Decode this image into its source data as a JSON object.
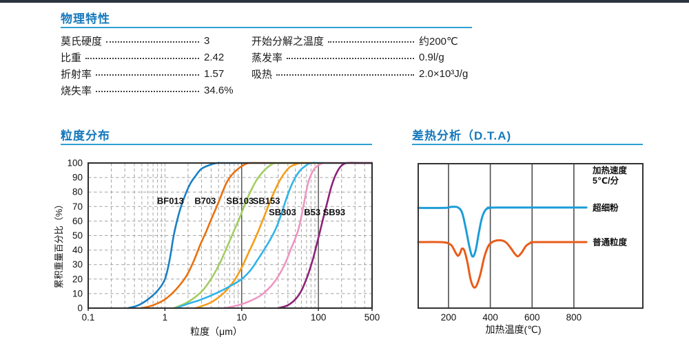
{
  "theme": {
    "title_color": "#1578bc",
    "rule_color": "#2e9fd4",
    "topbar_color": "#2c3340",
    "text_color": "#1c1c1e"
  },
  "physical": {
    "title": "物理特性",
    "left": [
      {
        "label": "莫氏硬度",
        "value": "3"
      },
      {
        "label": "比重",
        "value": "2.42"
      },
      {
        "label": "折射率",
        "value": "1.57"
      },
      {
        "label": "烧失率",
        "value": "34.6%"
      }
    ],
    "right": [
      {
        "label": "开始分解之温度",
        "value": "约200℃"
      },
      {
        "label": "蒸发率",
        "value": "0.9l/g"
      },
      {
        "label": "吸热",
        "value": "2.0×10³J/g"
      }
    ]
  },
  "particle": {
    "title": "粒度分布"
  },
  "dta": {
    "title": "差热分析（D.T.A)"
  },
  "chart_data": [
    {
      "type": "line",
      "title": "粒度分布",
      "xlabel": "粒度（μm）",
      "ylabel": "累积重量百分比（%）",
      "x_scale": "log",
      "xlim": [
        0.1,
        500
      ],
      "ylim": [
        0,
        100
      ],
      "x_ticks": [
        "0.1",
        "1",
        "10",
        "100",
        "500"
      ],
      "x_tick_values": [
        0.1,
        1,
        10,
        100,
        500
      ],
      "y_ticks": [
        0,
        10,
        20,
        30,
        40,
        50,
        60,
        70,
        80,
        90,
        100
      ],
      "solid_vlines": [
        10,
        100
      ],
      "grid": "dashed-minor-log",
      "series": [
        {
          "name": "BF013",
          "color": "#1a7fc4",
          "label_at": [
            1.18,
            74
          ],
          "points": [
            [
              0.33,
              0
            ],
            [
              0.45,
              2
            ],
            [
              0.6,
              6
            ],
            [
              0.8,
              12
            ],
            [
              1.0,
              20
            ],
            [
              1.15,
              33
            ],
            [
              1.3,
              50
            ],
            [
              1.5,
              64
            ],
            [
              1.75,
              75
            ],
            [
              2.1,
              85
            ],
            [
              2.5,
              91
            ],
            [
              3.0,
              96
            ],
            [
              4.0,
              99
            ],
            [
              5.0,
              100
            ],
            [
              8,
              100
            ],
            [
              500,
              100
            ]
          ]
        },
        {
          "name": "B703",
          "color": "#e8700f",
          "label_at": [
            3.35,
            74
          ],
          "points": [
            [
              0.5,
              0
            ],
            [
              0.7,
              2
            ],
            [
              1.0,
              6
            ],
            [
              1.4,
              13
            ],
            [
              1.9,
              22
            ],
            [
              2.4,
              33
            ],
            [
              2.9,
              44
            ],
            [
              3.4,
              52
            ],
            [
              4.0,
              61
            ],
            [
              5.0,
              73
            ],
            [
              6.3,
              86
            ],
            [
              7.5,
              92
            ],
            [
              9.0,
              96
            ],
            [
              11,
              99
            ],
            [
              13,
              100
            ],
            [
              20,
              100
            ],
            [
              500,
              100
            ]
          ]
        },
        {
          "name": "SB103",
          "color": "#a3cd62",
          "label_at": [
            9.5,
            74
          ],
          "points": [
            [
              1.3,
              0
            ],
            [
              1.8,
              3
            ],
            [
              2.4,
              7
            ],
            [
              3.2,
              13
            ],
            [
              4.2,
              22
            ],
            [
              5.2,
              31
            ],
            [
              6.2,
              40
            ],
            [
              7.2,
              48
            ],
            [
              8.2,
              55
            ],
            [
              9.7,
              64
            ],
            [
              11.5,
              74
            ],
            [
              13.5,
              82
            ],
            [
              16,
              89
            ],
            [
              19,
              94
            ],
            [
              23,
              98
            ],
            [
              28,
              100
            ],
            [
              40,
              100
            ],
            [
              500,
              100
            ]
          ]
        },
        {
          "name": "SB153",
          "color": "#f59d18",
          "label_at": [
            21,
            74
          ],
          "points": [
            [
              2.5,
              0
            ],
            [
              4,
              4
            ],
            [
              6,
              11
            ],
            [
              8,
              19
            ],
            [
              10,
              28
            ],
            [
              12.5,
              39
            ],
            [
              15,
              48
            ],
            [
              18,
              58
            ],
            [
              21,
              67
            ],
            [
              25,
              77
            ],
            [
              30,
              86
            ],
            [
              35,
              92
            ],
            [
              42,
              97
            ],
            [
              50,
              99
            ],
            [
              60,
              100
            ],
            [
              90,
              100
            ],
            [
              500,
              100
            ]
          ]
        },
        {
          "name": "SB303",
          "color": "#2fb4e9",
          "label_at": [
            34,
            66
          ],
          "points": [
            [
              1.4,
              0
            ],
            [
              2,
              3
            ],
            [
              3,
              6
            ],
            [
              5,
              11
            ],
            [
              7,
              15
            ],
            [
              10,
              20
            ],
            [
              13,
              26
            ],
            [
              16,
              33
            ],
            [
              20,
              41
            ],
            [
              24,
              48
            ],
            [
              28,
              55
            ],
            [
              33,
              65
            ],
            [
              38,
              75
            ],
            [
              44,
              84
            ],
            [
              50,
              90
            ],
            [
              58,
              95
            ],
            [
              68,
              98
            ],
            [
              80,
              100
            ],
            [
              120,
              100
            ],
            [
              500,
              100
            ]
          ]
        },
        {
          "name": "B53",
          "color": "#ef95c3",
          "label_at": [
            83,
            66
          ],
          "points": [
            [
              6,
              0
            ],
            [
              9,
              2
            ],
            [
              13,
              5
            ],
            [
              18,
              9
            ],
            [
              24,
              15
            ],
            [
              30,
              22
            ],
            [
              37,
              31
            ],
            [
              44,
              41
            ],
            [
              50,
              48
            ],
            [
              56,
              56
            ],
            [
              62,
              67
            ],
            [
              68,
              78
            ],
            [
              74,
              87
            ],
            [
              82,
              93
            ],
            [
              92,
              97
            ],
            [
              105,
              99
            ],
            [
              120,
              100
            ],
            [
              180,
              100
            ],
            [
              500,
              100
            ]
          ]
        },
        {
          "name": "SB93",
          "color": "#8e2077",
          "label_at": [
            160,
            66
          ],
          "points": [
            [
              30,
              0
            ],
            [
              40,
              2
            ],
            [
              50,
              6
            ],
            [
              60,
              12
            ],
            [
              72,
              22
            ],
            [
              85,
              34
            ],
            [
              95,
              44
            ],
            [
              105,
              53
            ],
            [
              118,
              64
            ],
            [
              132,
              74
            ],
            [
              148,
              84
            ],
            [
              165,
              91
            ],
            [
              185,
              96
            ],
            [
              210,
              99
            ],
            [
              240,
              100
            ],
            [
              350,
              100
            ],
            [
              500,
              100
            ]
          ]
        }
      ]
    },
    {
      "type": "line",
      "title": "差热分析（D.T.A)",
      "xlabel": "加热温度(℃)",
      "ylabel": "",
      "xlim": [
        55,
        1130
      ],
      "x_ticks": [
        "200",
        "400",
        "600",
        "800"
      ],
      "x_tick_values": [
        200,
        400,
        600,
        800
      ],
      "legend_lines": [
        "加热速度",
        "5℃/分"
      ],
      "series": [
        {
          "name": "超细粉",
          "color": "#1b9cd8",
          "label_at": [
            870,
            0.305
          ],
          "points": [
            [
              55,
              0.306
            ],
            [
              180,
              0.306
            ],
            [
              215,
              0.299
            ],
            [
              245,
              0.303
            ],
            [
              265,
              0.34
            ],
            [
              283,
              0.45
            ],
            [
              300,
              0.575
            ],
            [
              315,
              0.643
            ],
            [
              330,
              0.6
            ],
            [
              345,
              0.48
            ],
            [
              360,
              0.375
            ],
            [
              378,
              0.318
            ],
            [
              398,
              0.306
            ],
            [
              430,
              0.304
            ],
            [
              860,
              0.304
            ]
          ]
        },
        {
          "name": "普通粒度",
          "color": "#e85c18",
          "label_at": [
            870,
            0.543
          ],
          "points": [
            [
              55,
              0.543
            ],
            [
              160,
              0.543
            ],
            [
              195,
              0.549
            ],
            [
              215,
              0.567
            ],
            [
              233,
              0.614
            ],
            [
              245,
              0.638
            ],
            [
              256,
              0.617
            ],
            [
              264,
              0.588
            ],
            [
              276,
              0.602
            ],
            [
              290,
              0.68
            ],
            [
              304,
              0.79
            ],
            [
              316,
              0.845
            ],
            [
              327,
              0.857
            ],
            [
              339,
              0.828
            ],
            [
              354,
              0.755
            ],
            [
              371,
              0.648
            ],
            [
              389,
              0.575
            ],
            [
              407,
              0.545
            ],
            [
              432,
              0.531
            ],
            [
              456,
              0.532
            ],
            [
              478,
              0.549
            ],
            [
              500,
              0.588
            ],
            [
              518,
              0.625
            ],
            [
              533,
              0.641
            ],
            [
              551,
              0.614
            ],
            [
              571,
              0.569
            ],
            [
              594,
              0.548
            ],
            [
              620,
              0.543
            ],
            [
              860,
              0.543
            ]
          ]
        }
      ]
    }
  ]
}
